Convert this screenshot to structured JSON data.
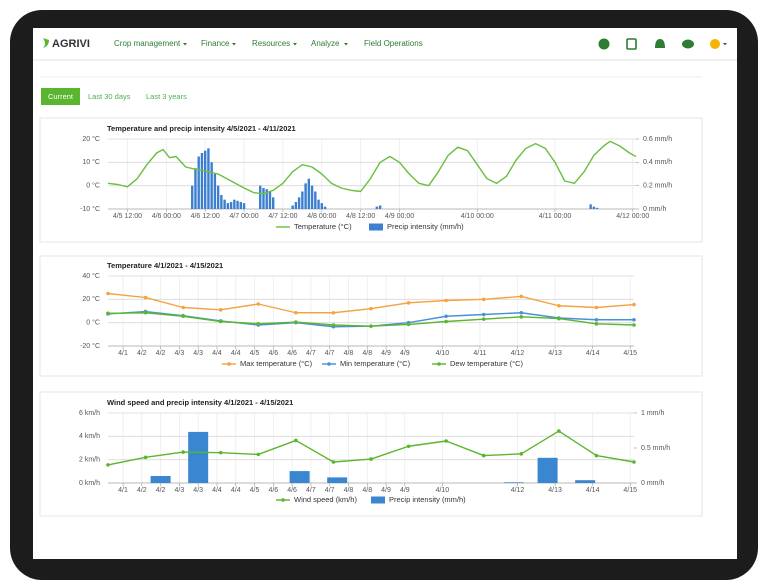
{
  "nav": {
    "logo": "AGRIVI",
    "menu": [
      "Crop management",
      "Finance",
      "Resources",
      "Analyze",
      "Field Operations"
    ]
  },
  "tabs": [
    "Current",
    "Last 30 days",
    "Last 3 years"
  ],
  "chart_data": [
    {
      "type": "combo",
      "title": "Temperature and precip intensity 4/5/2021 - 4/11/2021",
      "xlim": [
        6,
        169
      ],
      "xticks": [
        {
          "value": 12,
          "label": "4/5 12:00"
        },
        {
          "value": 24,
          "label": "4/6 00:00"
        },
        {
          "value": 36,
          "label": "4/6 12:00"
        },
        {
          "value": 48,
          "label": "4/7 00:00"
        },
        {
          "value": 60,
          "label": "4/7 12:00"
        },
        {
          "value": 72,
          "label": "4/8 00:00"
        },
        {
          "value": 84,
          "label": "4/8 12:00"
        },
        {
          "value": 96,
          "label": "4/9 00:00"
        },
        {
          "value": 120,
          "label": "4/10 00:00"
        },
        {
          "value": 144,
          "label": "4/11 00:00"
        },
        {
          "value": 168,
          "label": "4/12 00:00"
        }
      ],
      "ylim": [
        -10,
        20
      ],
      "yticks": [
        {
          "value": -10,
          "label": "-10 °C"
        },
        {
          "value": 0,
          "label": "0 °C"
        },
        {
          "value": 10,
          "label": "10 °C"
        },
        {
          "value": 20,
          "label": "20 °C"
        }
      ],
      "y2lim": [
        0,
        0.6
      ],
      "y2ticks": [
        {
          "value": 0,
          "label": "0 mm/h"
        },
        {
          "value": 0.2,
          "label": "0.2 mm/h"
        },
        {
          "value": 0.4,
          "label": "0.4 mm/h"
        },
        {
          "value": 0.6,
          "label": "0.6 mm/h"
        }
      ],
      "grid": true,
      "series": [
        {
          "name": "Temperature (°C)",
          "type": "line",
          "color": "#6abf40",
          "x": [
            6,
            9,
            12,
            15,
            18,
            21,
            23,
            25,
            27,
            30,
            33,
            37,
            40,
            44,
            48,
            51,
            54,
            57,
            60,
            63,
            66,
            69,
            72,
            75,
            78,
            81,
            84,
            87,
            90,
            93,
            96,
            99,
            102,
            105,
            108,
            111,
            114,
            117,
            120,
            123,
            126,
            129,
            132,
            135,
            138,
            141,
            144,
            147,
            150,
            153,
            156,
            159,
            161,
            164,
            167,
            169
          ],
          "values": [
            1,
            0.5,
            -0.5,
            3,
            9,
            14,
            15.5,
            12,
            12.5,
            8,
            7,
            6,
            5,
            2,
            -1,
            -3,
            -3.5,
            -2,
            1,
            6,
            9,
            8,
            5,
            1,
            -1,
            -2,
            -2.5,
            3,
            10,
            12.5,
            10,
            5,
            1,
            0,
            6,
            13,
            16.5,
            15,
            9,
            3,
            1,
            4,
            11,
            16,
            18,
            16,
            10,
            2,
            1,
            6,
            13,
            17,
            19,
            17,
            14,
            12.5
          ]
        },
        {
          "name": "Precip intensity (mm/h)",
          "type": "bar",
          "axis": "y2",
          "color": "#3d7fcf",
          "x": [
            32,
            33,
            34,
            35,
            36,
            37,
            38,
            39,
            40,
            41,
            42,
            43,
            44,
            45,
            46,
            47,
            48,
            53,
            54,
            55,
            56,
            57,
            63,
            64,
            65,
            66,
            67,
            68,
            69,
            70,
            71,
            72,
            73,
            89,
            90,
            155,
            156,
            157
          ],
          "values": [
            0.2,
            0.35,
            0.45,
            0.48,
            0.5,
            0.52,
            0.4,
            0.3,
            0.2,
            0.12,
            0.08,
            0.05,
            0.06,
            0.08,
            0.07,
            0.06,
            0.05,
            0.2,
            0.18,
            0.17,
            0.15,
            0.1,
            0.03,
            0.06,
            0.1,
            0.15,
            0.22,
            0.26,
            0.2,
            0.15,
            0.08,
            0.05,
            0.02,
            0.02,
            0.03,
            0.04,
            0.02,
            0.01
          ]
        }
      ]
    },
    {
      "type": "line",
      "title": "Temperature 4/1/2021 - 4/15/2021",
      "x": [
        1,
        2,
        3,
        4,
        5,
        6,
        7,
        8,
        9,
        10,
        11,
        12,
        13,
        14,
        15
      ],
      "xlim": [
        1,
        15
      ],
      "xticks": [
        {
          "value": 1.4,
          "label": "4/1"
        },
        {
          "value": 1.9,
          "label": "4/2"
        },
        {
          "value": 2.4,
          "label": "4/2"
        },
        {
          "value": 2.9,
          "label": "4/3"
        },
        {
          "value": 3.4,
          "label": "4/3"
        },
        {
          "value": 3.9,
          "label": "4/4"
        },
        {
          "value": 4.4,
          "label": "4/4"
        },
        {
          "value": 4.9,
          "label": "4/5"
        },
        {
          "value": 5.4,
          "label": "4/6"
        },
        {
          "value": 5.9,
          "label": "4/6"
        },
        {
          "value": 6.4,
          "label": "4/7"
        },
        {
          "value": 6.9,
          "label": "4/7"
        },
        {
          "value": 7.4,
          "label": "4/8"
        },
        {
          "value": 7.9,
          "label": "4/8"
        },
        {
          "value": 8.4,
          "label": "4/9"
        },
        {
          "value": 8.9,
          "label": "4/9"
        },
        {
          "value": 9.9,
          "label": "4/10"
        },
        {
          "value": 10.9,
          "label": "4/11"
        },
        {
          "value": 11.9,
          "label": "4/12"
        },
        {
          "value": 12.9,
          "label": "4/13"
        },
        {
          "value": 13.9,
          "label": "4/14"
        },
        {
          "value": 14.9,
          "label": "4/15"
        }
      ],
      "ylim": [
        -20,
        40
      ],
      "yticks": [
        {
          "value": -20,
          "label": "-20 °C"
        },
        {
          "value": 0,
          "label": "0 °C"
        },
        {
          "value": 20,
          "label": "20 °C"
        },
        {
          "value": 40,
          "label": "40 °C"
        }
      ],
      "grid": true,
      "series": [
        {
          "name": "Max temperature (°C)",
          "type": "line",
          "markers": true,
          "color": "#f4a340",
          "values": [
            25,
            21.5,
            13,
            11,
            16,
            8.5,
            8.5,
            12,
            17,
            19,
            20,
            22.5,
            14.5,
            13,
            15.5
          ]
        },
        {
          "name": "Min temperature (°C)",
          "type": "line",
          "markers": true,
          "color": "#4a90d9",
          "values": [
            7.5,
            9.5,
            6,
            1.5,
            -2,
            0,
            -3.5,
            -3,
            0,
            5.5,
            7,
            8.5,
            4,
            2.5,
            2.5
          ]
        },
        {
          "name": "Dew temperature (°C)",
          "type": "line",
          "markers": true,
          "color": "#5ab52f",
          "values": [
            8,
            8.5,
            5.5,
            1,
            -1,
            0.5,
            -2,
            -3,
            -1.5,
            1,
            3,
            5,
            3.5,
            -1,
            -2
          ]
        }
      ]
    },
    {
      "type": "combo",
      "title": "Wind speed and precip intensity 4/1/2021 - 4/15/2021",
      "x": [
        1,
        2,
        3,
        4,
        5,
        6,
        7,
        8,
        9,
        10,
        11,
        12,
        13,
        14,
        15
      ],
      "xlim": [
        1,
        15
      ],
      "xticks": [
        {
          "value": 1.4,
          "label": "4/1"
        },
        {
          "value": 1.9,
          "label": "4/2"
        },
        {
          "value": 2.4,
          "label": "4/2"
        },
        {
          "value": 2.9,
          "label": "4/3"
        },
        {
          "value": 3.4,
          "label": "4/3"
        },
        {
          "value": 3.9,
          "label": "4/4"
        },
        {
          "value": 4.4,
          "label": "4/4"
        },
        {
          "value": 4.9,
          "label": "4/5"
        },
        {
          "value": 5.4,
          "label": "4/6"
        },
        {
          "value": 5.9,
          "label": "4/6"
        },
        {
          "value": 6.4,
          "label": "4/7"
        },
        {
          "value": 6.9,
          "label": "4/7"
        },
        {
          "value": 7.4,
          "label": "4/8"
        },
        {
          "value": 7.9,
          "label": "4/8"
        },
        {
          "value": 8.4,
          "label": "4/9"
        },
        {
          "value": 8.9,
          "label": "4/9"
        },
        {
          "value": 9.9,
          "label": "4/10"
        },
        {
          "value": 11.9,
          "label": "4/12"
        },
        {
          "value": 12.9,
          "label": "4/13"
        },
        {
          "value": 13.9,
          "label": "4/14"
        },
        {
          "value": 14.9,
          "label": "4/15"
        }
      ],
      "ylim": [
        0,
        6
      ],
      "yticks": [
        {
          "value": 0,
          "label": "0 km/h"
        },
        {
          "value": 2,
          "label": "2 km/h"
        },
        {
          "value": 4,
          "label": "4 km/h"
        },
        {
          "value": 6,
          "label": "6 km/h"
        }
      ],
      "y2lim": [
        0,
        1
      ],
      "y2ticks": [
        {
          "value": 0,
          "label": "0 mm/h"
        },
        {
          "value": 0.5,
          "label": "0.5 mm/h"
        },
        {
          "value": 1,
          "label": "1 mm/h"
        }
      ],
      "grid": true,
      "series": [
        {
          "name": "Wind speed (km/h)",
          "type": "line",
          "markers": true,
          "color": "#5ab52f",
          "values": [
            1.55,
            2.2,
            2.65,
            2.6,
            2.45,
            3.65,
            1.8,
            2.05,
            3.15,
            3.6,
            2.35,
            2.5,
            4.45,
            2.35,
            1.8
          ]
        },
        {
          "name": "Precip intensity (mm/h)",
          "type": "bar",
          "axis": "y2",
          "color": "#3a86d0",
          "x": [
            2.4,
            3.4,
            6.1,
            7.1,
            11.8,
            12.7,
            13.7
          ],
          "values": [
            0.1,
            0.73,
            0.17,
            0.08,
            0.01,
            0.36,
            0.04
          ]
        }
      ]
    }
  ]
}
